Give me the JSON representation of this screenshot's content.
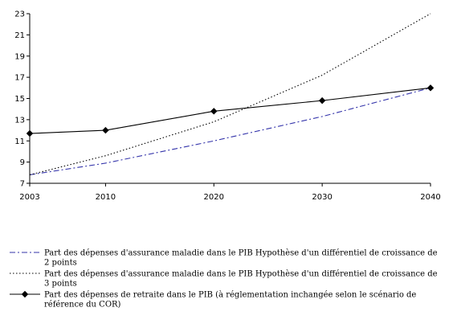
{
  "chart_data": {
    "type": "line",
    "x": [
      2003,
      2010,
      2020,
      2030,
      2040
    ],
    "xticks": [
      "2003",
      "2010",
      "2020",
      "2030",
      "2040"
    ],
    "yticks": [
      "7",
      "9",
      "11",
      "13",
      "15",
      "17",
      "19",
      "21",
      "23"
    ],
    "ylim": [
      7,
      23
    ],
    "xlim": [
      2003,
      2040
    ],
    "grid": false,
    "legend_position": "bottom",
    "series": [
      {
        "name": "Part des dépenses d'assurance maladie dans le PIB Hypothèse d'un différentiel de croissance de 2 points",
        "values": [
          7.8,
          8.9,
          11.0,
          13.3,
          16.0
        ],
        "color": "#3333aa",
        "style": "dash-dot",
        "marker": "none"
      },
      {
        "name": "Part des dépenses d'assurance maladie dans le PIB  Hypothèse d'un différentiel de croissance de 3 points",
        "values": [
          7.8,
          9.6,
          12.8,
          17.2,
          23.0
        ],
        "color": "#000000",
        "style": "dotted",
        "marker": "none"
      },
      {
        "name": "Part des dépenses de retraite dans le PIB (à réglementation inchangée selon le scénario de référence du COR)",
        "values": [
          11.7,
          12.0,
          13.8,
          14.8,
          16.0
        ],
        "color": "#000000",
        "style": "solid",
        "marker": "diamond"
      }
    ]
  }
}
